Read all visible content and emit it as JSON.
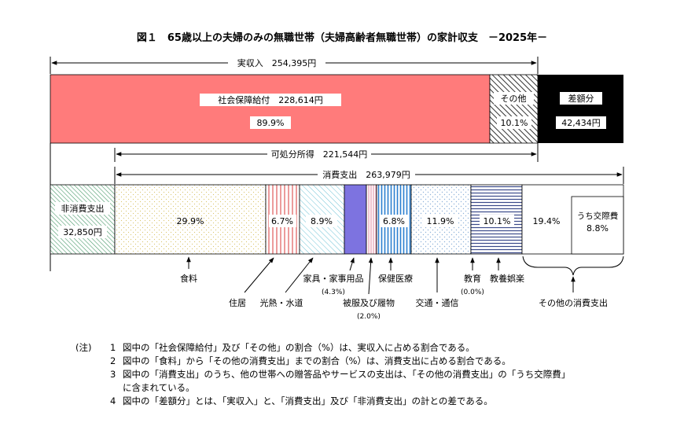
{
  "chart_data": {
    "type": "bar",
    "title": "図１　65歳以上の夫婦のみの無職世帯（夫婦高齢者無職世帯）の家計収支　－2025年－",
    "income": {
      "label": "実収入　254,395円",
      "value": 254395,
      "segments": [
        {
          "name": "社会保障給付",
          "label": "社会保障給付　228,614円",
          "value": 228614,
          "pct_label": "89.9%",
          "color": "#ff7b7b"
        },
        {
          "name": "その他",
          "label": "その他",
          "pct_label": "10.1%"
        }
      ],
      "deficit": {
        "label": "差額分",
        "value_label": "42,434円",
        "value": 42434,
        "color": "#000000"
      }
    },
    "disposable": {
      "label": "可処分所得　221,544円",
      "value": 221544
    },
    "consumption": {
      "label": "消費支出　263,979円",
      "value": 263979
    },
    "non_consumption": {
      "label": "非消費支出",
      "value_label": "32,850円",
      "value": 32850
    },
    "expenditure_segments": [
      {
        "name": "食料",
        "pct": 29.9,
        "pct_label": "29.9%"
      },
      {
        "name": "住居",
        "pct": 6.7,
        "pct_label": "6.7%"
      },
      {
        "name": "光熱・水道",
        "pct": 8.9,
        "pct_label": "8.9%"
      },
      {
        "name": "家具・家事用品",
        "pct": 4.3,
        "pct_label": ""
      },
      {
        "name": "被服及び履物",
        "pct": 2.0,
        "pct_label": ""
      },
      {
        "name": "保健医療",
        "pct": 6.8,
        "pct_label": "6.8%"
      },
      {
        "name": "交通・通信",
        "pct": 11.9,
        "pct_label": "11.9%"
      },
      {
        "name": "教育",
        "pct": 0.0,
        "pct_label": ""
      },
      {
        "name": "教養娯楽",
        "pct": 10.1,
        "pct_label": "10.1%"
      },
      {
        "name": "その他の消費支出",
        "pct": 19.4,
        "pct_label": "19.4%"
      }
    ],
    "sub_segment": {
      "label": "うち交際費",
      "pct_label": "8.8%",
      "pct": 8.8
    },
    "category_labels": {
      "food": "食料",
      "housing": "住居",
      "utilities": "光熱・水道",
      "furniture": "家具・家事用品",
      "furniture_pct": "(4.3%)",
      "clothing": "被服及び履物",
      "clothing_pct": "(2.0%)",
      "health": "保健医療",
      "transport": "交通・通信",
      "education": "教育",
      "education_pct": "(0.0%)",
      "recreation": "教養娯楽",
      "other": "その他の消費支出"
    }
  },
  "notes": {
    "lead": "(注)",
    "items": [
      {
        "num": "1",
        "text": "図中の「社会保障給付」及び「その他」の割合（%）は、実収入に占める割合である。"
      },
      {
        "num": "2",
        "text": "図中の「食料」から「その他の消費支出」までの割合（%）は、消費支出に占める割合である。"
      },
      {
        "num": "3",
        "text": "図中の「消費支出」のうち、他の世帯への贈答品やサービスの支出は、「その他の消費支出」の「うち交際費」"
      },
      {
        "num": "",
        "text": "に含まれている。"
      },
      {
        "num": "4",
        "text": "図中の「差額分」とは、「実収入」と、「消費支出」及び「非消費支出」の計との差である。"
      }
    ]
  }
}
